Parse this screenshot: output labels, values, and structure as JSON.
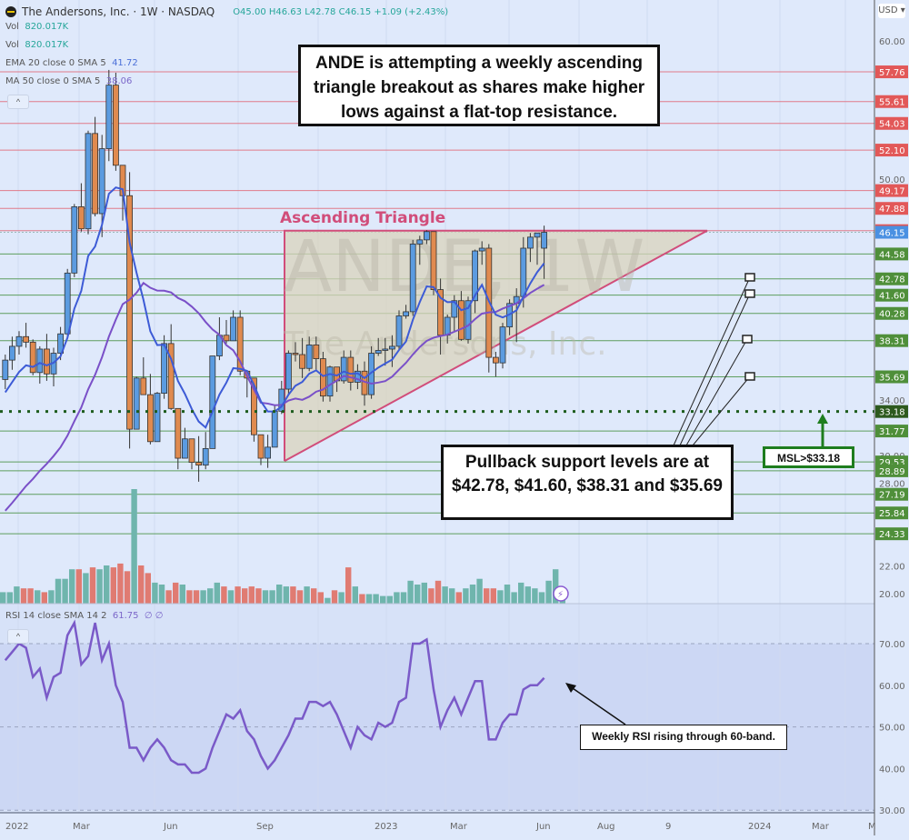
{
  "header": {
    "title": "The Andersons, Inc. · 1W · NASDAQ",
    "ohlc": "O45.00 H46.63 L42.78 C46.15 +1.09 (+2.43%)",
    "currency": "USD"
  },
  "legends": {
    "vol1_label": "Vol",
    "vol1_value": "820.017K",
    "vol2_label": "Vol",
    "vol2_value": "820.017K",
    "ema_label": "EMA 20 close 0 SMA 5",
    "ema_value": "41.72",
    "ma_label": "MA 50 close 0 SMA 5",
    "ma_value": "38.06",
    "rsi_label": "RSI 14 close SMA 14 2",
    "rsi_value": "61.75",
    "rsi_extra": "∅ ∅"
  },
  "annotations": {
    "top_note_lines": [
      "ANDE is attempting a weekly ascending",
      "triangle breakout as shares make higher",
      "lows against a flat-top resistance."
    ],
    "triangle_label": "Ascending Triangle",
    "watermark_symbol": "ANDE, 1W",
    "watermark_name": "The Andersons, Inc.",
    "support_note_lines": [
      "Pullback support levels are at",
      "$42.78, $41.60, $38.31 and $35.69"
    ],
    "msl_label": "MSL>$33.18",
    "rsi_note": "Weekly RSI rising through 60-band."
  },
  "colors": {
    "background": "#dfe9fb",
    "up_candle": "#5b9be0",
    "down_candle": "#e08a4f",
    "vol_up": "#6fb5ad",
    "vol_down": "#e07b72",
    "resistance_line": "#e07b8a",
    "support_line": "#5e9e5e",
    "resistance_tag": "#e25858",
    "support_tag": "#4f8f3a",
    "last_price_tag": "#4a90e2",
    "ema": "#3d5bd6",
    "ma": "#7a50c8",
    "rsi": "#7a5ac8",
    "triangle": "#d14d7a"
  },
  "chart_data": [
    {
      "type": "candlestick",
      "title": "The Andersons, Inc. · 1W · NASDAQ",
      "ylabel": "USD",
      "ylim": [
        19,
        62
      ],
      "y_ticks": [
        20,
        22,
        28,
        30,
        34,
        50,
        60
      ],
      "x_ticks": [
        "2022",
        "Mar",
        "Jun",
        "Sep",
        "2023",
        "Mar",
        "Jun",
        "Aug",
        "9",
        "2024",
        "Mar",
        "M"
      ],
      "last": {
        "open": 45.0,
        "high": 46.63,
        "low": 42.78,
        "close": 46.15,
        "change": 1.09,
        "change_pct": 2.43
      },
      "resistance_levels": [
        57.76,
        55.61,
        54.03,
        52.1,
        49.17,
        47.88,
        46.27
      ],
      "support_levels": [
        44.58,
        42.78,
        41.6,
        40.28,
        38.31,
        35.69,
        31.77,
        29.53,
        28.89,
        27.19,
        25.84,
        24.33
      ],
      "msl_level": 33.18,
      "last_price": 46.15,
      "candles": [
        [
          35.5,
          37.3,
          34.8,
          36.9
        ],
        [
          36.9,
          38.6,
          36.2,
          37.9
        ],
        [
          37.9,
          39.0,
          37.3,
          38.6
        ],
        [
          38.6,
          39.6,
          37.8,
          38.2
        ],
        [
          38.2,
          38.4,
          35.8,
          36.0
        ],
        [
          36.0,
          37.9,
          35.2,
          37.7
        ],
        [
          37.7,
          38.8,
          35.4,
          35.9
        ],
        [
          35.9,
          37.8,
          35.0,
          37.4
        ],
        [
          37.4,
          39.3,
          36.9,
          38.8
        ],
        [
          38.8,
          43.5,
          38.6,
          43.2
        ],
        [
          43.2,
          48.2,
          42.9,
          48.0
        ],
        [
          48.0,
          49.7,
          46.2,
          46.4
        ],
        [
          46.4,
          53.5,
          46.0,
          53.3
        ],
        [
          53.3,
          54.5,
          47.3,
          47.5
        ],
        [
          47.5,
          53.2,
          45.8,
          52.2
        ],
        [
          52.2,
          57.9,
          51.3,
          56.8
        ],
        [
          56.8,
          57.7,
          50.6,
          51.0
        ],
        [
          51.0,
          49.8,
          47.0,
          48.8
        ],
        [
          48.8,
          50.5,
          30.5,
          31.9
        ],
        [
          31.9,
          35.7,
          33.8,
          35.6
        ],
        [
          35.6,
          37.1,
          34.8,
          34.4
        ],
        [
          34.4,
          35.9,
          30.8,
          31.0
        ],
        [
          31.0,
          34.6,
          33.7,
          34.5
        ],
        [
          34.5,
          38.7,
          34.1,
          38.1
        ],
        [
          38.1,
          39.5,
          33.3,
          33.4
        ],
        [
          33.4,
          33.4,
          29.0,
          29.8
        ],
        [
          29.8,
          32.0,
          30.6,
          31.2
        ],
        [
          31.2,
          31.2,
          29.0,
          29.5
        ],
        [
          29.5,
          31.4,
          28.1,
          29.3
        ],
        [
          29.3,
          31.7,
          29.0,
          30.5
        ],
        [
          30.5,
          37.2,
          30.5,
          37.2
        ],
        [
          37.2,
          40.0,
          36.9,
          38.7
        ],
        [
          38.7,
          39.8,
          38.1,
          38.3
        ],
        [
          38.3,
          40.5,
          38.6,
          40.0
        ],
        [
          40.0,
          40.5,
          35.8,
          36.1
        ],
        [
          36.1,
          36.0,
          34.2,
          35.6
        ],
        [
          35.6,
          35.5,
          31.0,
          31.5
        ],
        [
          31.5,
          31.2,
          29.3,
          29.8
        ],
        [
          29.8,
          31.5,
          29.1,
          30.6
        ],
        [
          30.6,
          33.6,
          30.6,
          33.2
        ],
        [
          33.2,
          35.4,
          33.0,
          34.8
        ],
        [
          34.8,
          37.6,
          34.4,
          37.4
        ],
        [
          37.4,
          38.2,
          36.8,
          37.3
        ],
        [
          37.3,
          38.5,
          35.6,
          36.3
        ],
        [
          36.3,
          38.6,
          36.1,
          38.0
        ],
        [
          38.0,
          38.6,
          36.2,
          37.0
        ],
        [
          37.0,
          37.5,
          33.9,
          34.3
        ],
        [
          34.3,
          36.5,
          33.9,
          36.4
        ],
        [
          36.4,
          36.0,
          34.6,
          35.4
        ],
        [
          35.4,
          37.6,
          35.2,
          37.1
        ],
        [
          37.1,
          37.6,
          34.7,
          35.3
        ],
        [
          35.3,
          36.6,
          34.8,
          36.1
        ],
        [
          36.1,
          36.8,
          33.6,
          34.4
        ],
        [
          34.4,
          37.9,
          34.1,
          37.4
        ],
        [
          37.4,
          38.5,
          37.2,
          37.6
        ],
        [
          37.6,
          38.5,
          36.5,
          37.7
        ],
        [
          37.7,
          38.7,
          36.4,
          37.9
        ],
        [
          37.9,
          40.5,
          37.7,
          40.1
        ],
        [
          40.1,
          40.9,
          39.9,
          40.4
        ],
        [
          40.4,
          45.6,
          40.1,
          45.3
        ],
        [
          45.3,
          45.9,
          43.8,
          45.6
        ],
        [
          45.6,
          46.3,
          45.3,
          46.2
        ],
        [
          46.2,
          45.8,
          41.6,
          42.0
        ],
        [
          42.0,
          42.8,
          37.3,
          38.7
        ],
        [
          38.7,
          40.2,
          38.1,
          40.0
        ],
        [
          40.0,
          41.6,
          39.0,
          41.2
        ],
        [
          41.2,
          41.9,
          38.3,
          38.4
        ],
        [
          38.4,
          41.5,
          38.1,
          41.2
        ],
        [
          41.2,
          44.9,
          40.3,
          44.8
        ],
        [
          44.8,
          45.5,
          43.8,
          45.0
        ],
        [
          45.0,
          45.3,
          36.0,
          37.1
        ],
        [
          37.1,
          37.5,
          35.7,
          36.7
        ],
        [
          36.7,
          39.6,
          36.3,
          39.3
        ],
        [
          39.3,
          41.3,
          38.7,
          41.0
        ],
        [
          41.0,
          42.1,
          38.2,
          41.5
        ],
        [
          41.5,
          45.8,
          40.7,
          45.0
        ],
        [
          45.0,
          46.1,
          44.0,
          45.8
        ],
        [
          45.8,
          46.0,
          43.8,
          46.1
        ],
        [
          45.0,
          46.63,
          42.78,
          46.15
        ]
      ],
      "series": [
        {
          "name": "EMA 20",
          "value": 41.72
        },
        {
          "name": "MA 50",
          "value": 38.06
        }
      ]
    },
    {
      "type": "bar",
      "title": "Volume",
      "last_value": "820.017K"
    },
    {
      "type": "line",
      "title": "RSI 14 close SMA 14 2",
      "ylim": [
        30,
        78
      ],
      "y_ticks": [
        30,
        40,
        50,
        60,
        70
      ],
      "bands": [
        30,
        50,
        70
      ],
      "last_value": 61.75,
      "values": [
        66,
        68,
        70,
        69,
        62,
        64,
        57,
        62,
        63,
        72,
        75,
        65,
        67,
        75,
        66,
        70,
        60,
        56,
        45,
        45,
        42,
        45,
        47,
        45,
        42,
        41,
        41,
        39,
        39,
        40,
        45,
        49,
        53,
        52,
        54,
        49,
        47,
        43,
        40,
        42,
        45,
        48,
        52,
        52,
        56,
        56,
        55,
        56,
        53,
        49,
        45,
        50,
        48,
        47,
        51,
        50,
        51,
        56,
        57,
        70,
        70,
        71,
        59,
        50,
        54,
        57,
        53,
        57,
        61,
        61,
        47,
        47,
        51,
        53,
        53,
        59,
        60,
        60,
        61.75
      ]
    }
  ]
}
